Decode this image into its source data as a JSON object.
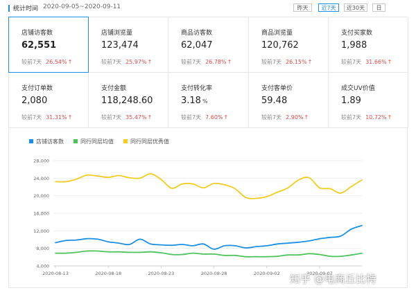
{
  "header": {
    "stats_label": "统计时间",
    "date_range": "2020-09-05~2020-09-11",
    "buttons": [
      {
        "label": "昨天",
        "active": false
      },
      {
        "label": "近7天",
        "active": true
      },
      {
        "label": "近30天",
        "active": false
      },
      {
        "label": "日",
        "active": false
      }
    ]
  },
  "metrics": [
    {
      "title": "店铺访客数",
      "value": "62,551",
      "unit": "",
      "compare_label": "较前7天",
      "change": "26.54%",
      "selected": true
    },
    {
      "title": "店铺浏览量",
      "value": "123,474",
      "unit": "",
      "compare_label": "较前7天",
      "change": "25.97%",
      "selected": false
    },
    {
      "title": "商品访客数",
      "value": "62,047",
      "unit": "",
      "compare_label": "较前7天",
      "change": "26.78%",
      "selected": false
    },
    {
      "title": "商品浏览量",
      "value": "120,762",
      "unit": "",
      "compare_label": "较前7天",
      "change": "26.15%",
      "selected": false
    },
    {
      "title": "支付买家数",
      "value": "1,988",
      "unit": "",
      "compare_label": "较前7天",
      "change": "31.66%",
      "selected": false
    },
    {
      "title": "支付订单数",
      "value": "2,080",
      "unit": "",
      "compare_label": "较前7天",
      "change": "31.31%",
      "selected": false
    },
    {
      "title": "支付金额",
      "value": "118,248.60",
      "unit": "",
      "compare_label": "较前7天",
      "change": "35.47%",
      "selected": false
    },
    {
      "title": "支付转化率",
      "value": "3.18",
      "unit": "%",
      "compare_label": "较前7天",
      "change": "7.60%",
      "selected": false
    },
    {
      "title": "支付客单价",
      "value": "59.48",
      "unit": "",
      "compare_label": "较前7天",
      "change": "2.90%",
      "selected": false
    },
    {
      "title": "成交UV价值",
      "value": "1.89",
      "unit": "",
      "compare_label": "较前7天",
      "change": "10.72%",
      "selected": false
    }
  ],
  "colors": {
    "accent": "#1a8fe3",
    "up": "#e04848",
    "series_blue": "#1a8fe3",
    "series_green": "#4cc35b",
    "series_yellow": "#f2cc1f"
  },
  "watermark": "知乎 @电商丘比特",
  "chart_data": {
    "type": "line",
    "x": [
      "2020-08-13",
      "2020-08-14",
      "2020-08-15",
      "2020-08-16",
      "2020-08-17",
      "2020-08-18",
      "2020-08-19",
      "2020-08-20",
      "2020-08-21",
      "2020-08-22",
      "2020-08-23",
      "2020-08-24",
      "2020-08-25",
      "2020-08-26",
      "2020-08-27",
      "2020-08-28",
      "2020-08-29",
      "2020-08-30",
      "2020-08-31",
      "2020-09-01",
      "2020-09-02",
      "2020-09-03",
      "2020-09-04",
      "2020-09-05",
      "2020-09-06",
      "2020-09-07",
      "2020-09-08",
      "2020-09-09",
      "2020-09-10",
      "2020-09-11"
    ],
    "x_tick_labels": [
      "2020-08-13",
      "2020-08-18",
      "2020-08-23",
      "2020-08-28",
      "2020-09-02",
      "2020-09-07"
    ],
    "y_ticks": [
      "4,000",
      "8,000",
      "12,000",
      "16,000",
      "20,000",
      "24,000",
      "28,000"
    ],
    "ylim": [
      4000,
      28000
    ],
    "grid": true,
    "legend_position": "top-left",
    "series": [
      {
        "name": "店铺访客数",
        "color": "#1a8fe3",
        "values": [
          9300,
          9800,
          9900,
          10200,
          10100,
          9500,
          9200,
          8900,
          10100,
          9000,
          8800,
          8700,
          8900,
          8600,
          9000,
          7800,
          8600,
          8600,
          8100,
          8400,
          8600,
          9000,
          9200,
          9400,
          9700,
          10200,
          10500,
          10800,
          12400,
          13200
        ]
      },
      {
        "name": "同行同层均值",
        "color": "#4cc35b",
        "values": [
          6900,
          6900,
          7100,
          7400,
          7400,
          7200,
          7200,
          7100,
          7100,
          7200,
          7000,
          6600,
          6600,
          6900,
          6700,
          6700,
          6400,
          6400,
          6100,
          6100,
          6100,
          6200,
          6500,
          6500,
          6800,
          6600,
          6200,
          6200,
          6500,
          6900
        ]
      },
      {
        "name": "同行同层优秀值",
        "color": "#f2cc1f",
        "values": [
          23200,
          23200,
          23800,
          24700,
          24500,
          24200,
          24600,
          24100,
          24000,
          25000,
          23700,
          21700,
          22700,
          22700,
          21800,
          22800,
          22500,
          21600,
          19600,
          19400,
          19800,
          20800,
          21800,
          23600,
          24100,
          21800,
          21600,
          20600,
          22100,
          23600
        ]
      }
    ]
  }
}
